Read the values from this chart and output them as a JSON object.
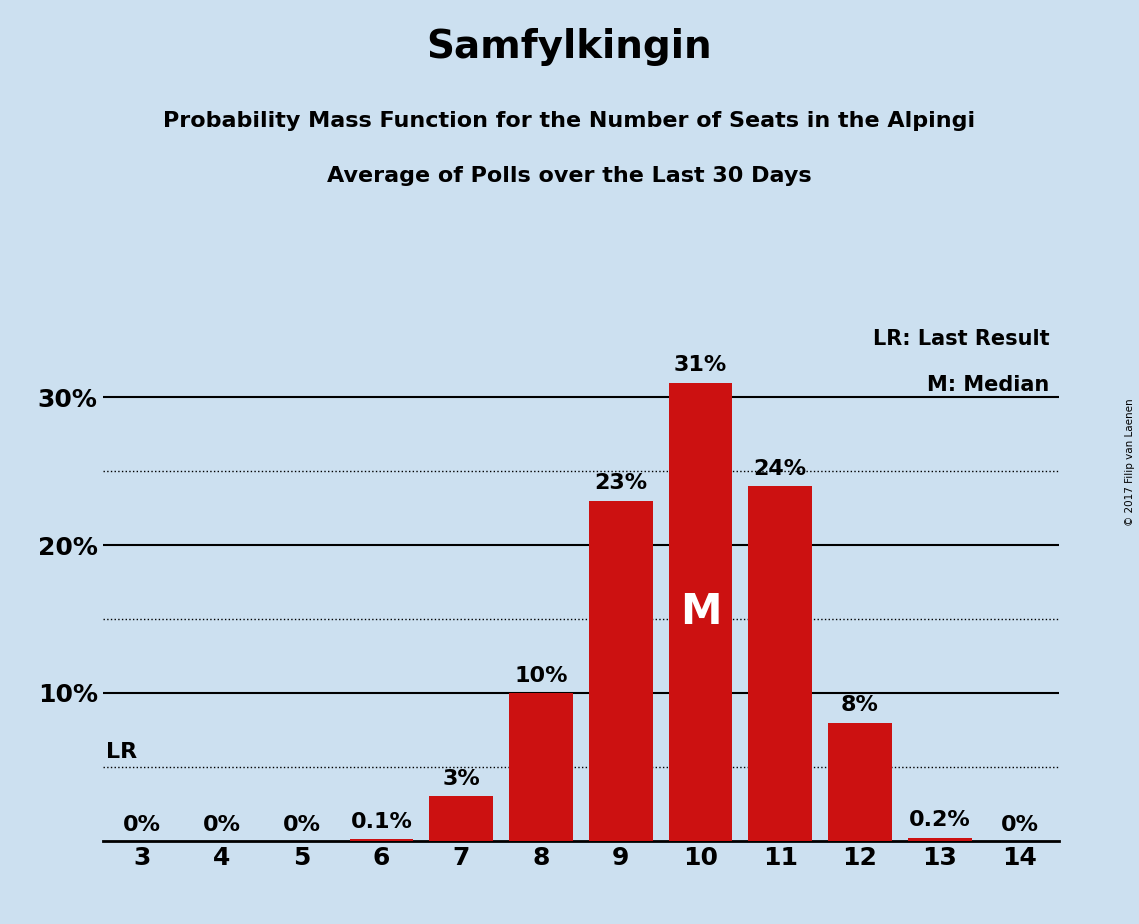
{
  "title": "Samfylkingin",
  "subtitle1": "Probability Mass Function for the Number of Seats in the Alpingi",
  "subtitle2": "Average of Polls over the Last 30 Days",
  "copyright": "© 2017 Filip van Laenen",
  "categories": [
    3,
    4,
    5,
    6,
    7,
    8,
    9,
    10,
    11,
    12,
    13,
    14
  ],
  "values": [
    0.0,
    0.0,
    0.0,
    0.1,
    3.0,
    10.0,
    23.0,
    31.0,
    24.0,
    8.0,
    0.2,
    0.0
  ],
  "labels": [
    "0%",
    "0%",
    "0%",
    "0.1%",
    "3%",
    "10%",
    "23%",
    "31%",
    "24%",
    "8%",
    "0.2%",
    "0%"
  ],
  "bar_color": "#cc1111",
  "background_color": "#cce0f0",
  "ylim": [
    0,
    35
  ],
  "solid_lines": [
    10,
    20,
    30
  ],
  "dotted_lines": [
    5,
    15,
    25
  ],
  "lr_line": 5,
  "median_bar": 10,
  "legend_lr": "LR: Last Result",
  "legend_m": "M: Median",
  "median_label": "M",
  "title_fontsize": 28,
  "subtitle_fontsize": 16,
  "label_fontsize": 16,
  "axis_fontsize": 18,
  "ytick_positions": [
    10,
    20,
    30
  ],
  "ytick_labels": [
    "10%",
    "20%",
    "30%"
  ]
}
